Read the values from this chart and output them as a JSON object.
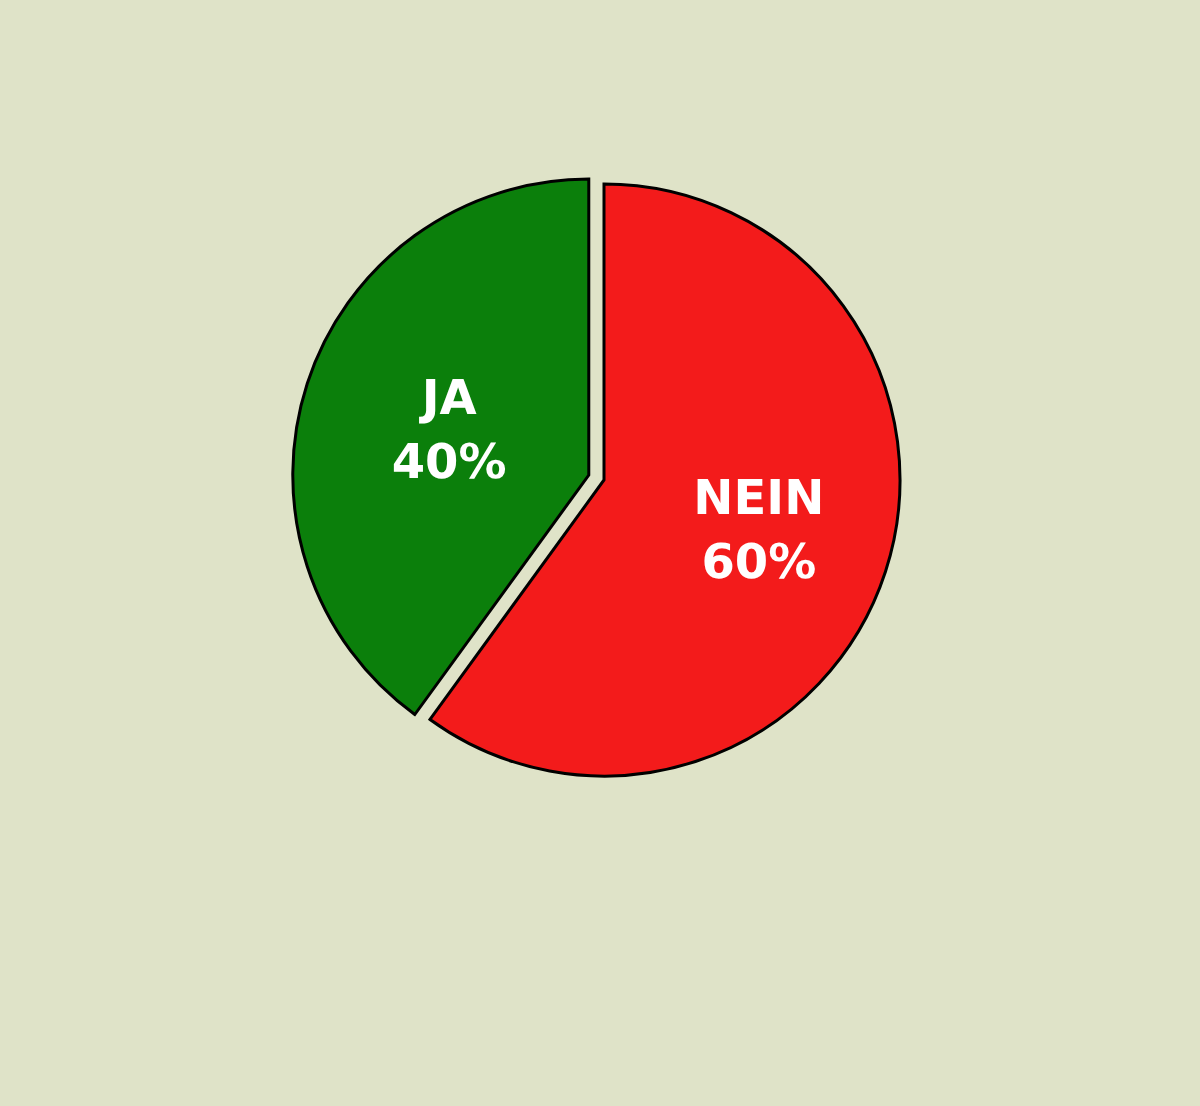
{
  "chart_data": {
    "type": "pie",
    "categories": [
      "JA",
      "NEIN"
    ],
    "values": [
      40,
      60
    ],
    "colors": [
      "#0b7f0b",
      "#f31b1b"
    ],
    "value_labels": [
      "40%",
      "60%"
    ]
  }
}
